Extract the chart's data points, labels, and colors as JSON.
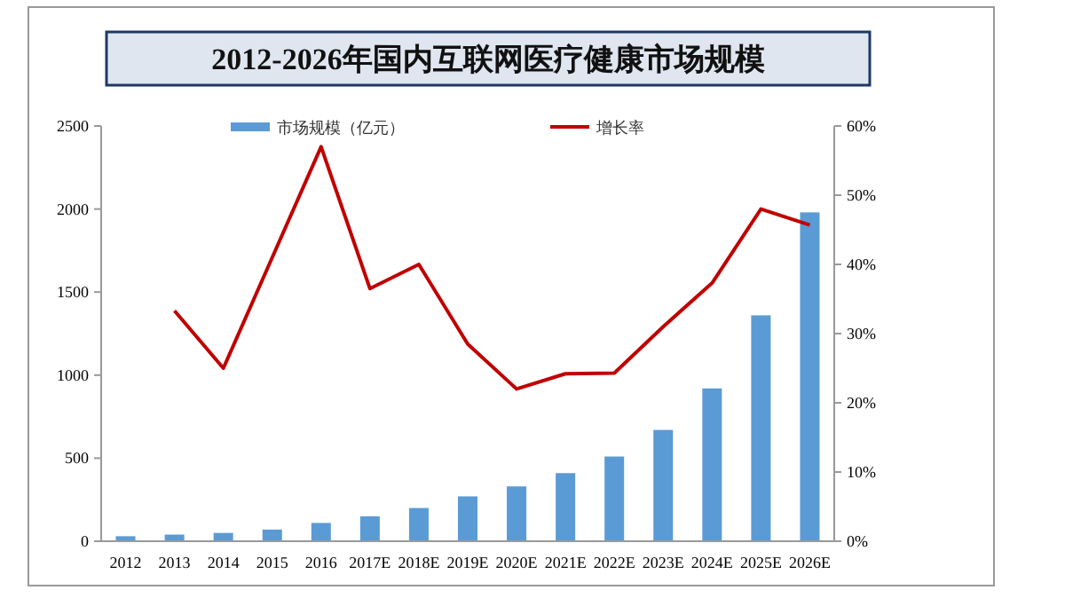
{
  "chart_data": {
    "type": "bar",
    "title": "2012-2026年国内互联网医疗健康市场规模",
    "categories": [
      "2012",
      "2013",
      "2014",
      "2015",
      "2016",
      "2017E",
      "2018E",
      "2019E",
      "2020E",
      "2021E",
      "2022E",
      "2023E",
      "2024E",
      "2025E",
      "2026E"
    ],
    "series": [
      {
        "name": "市场规模（亿元）",
        "color": "#5b9bd5",
        "values": [
          30,
          40,
          50,
          70,
          110,
          150,
          200,
          270,
          330,
          410,
          510,
          670,
          920,
          1360,
          1980
        ]
      },
      {
        "name": "增长率",
        "type": "line",
        "axis": "y2",
        "color": "#c00000",
        "values": [
          null,
          33.3,
          25,
          41,
          57,
          36.5,
          40,
          28.5,
          22,
          24.2,
          24.3,
          31,
          37.3,
          48,
          45.7
        ]
      }
    ],
    "ylim": [
      0,
      2500
    ],
    "yticks": [
      0,
      500,
      1000,
      1500,
      2000,
      2500
    ],
    "y2lim": [
      0,
      60
    ],
    "y2ticks": [
      {
        "value": 0,
        "label": "0%"
      },
      {
        "value": 10,
        "label": "10%"
      },
      {
        "value": 20,
        "label": "20%"
      },
      {
        "value": 30,
        "label": "30%"
      },
      {
        "value": 40,
        "label": "40%"
      },
      {
        "value": 50,
        "label": "50%"
      },
      {
        "value": 60,
        "label": "60%"
      }
    ],
    "legend": "top",
    "marker": "none"
  }
}
